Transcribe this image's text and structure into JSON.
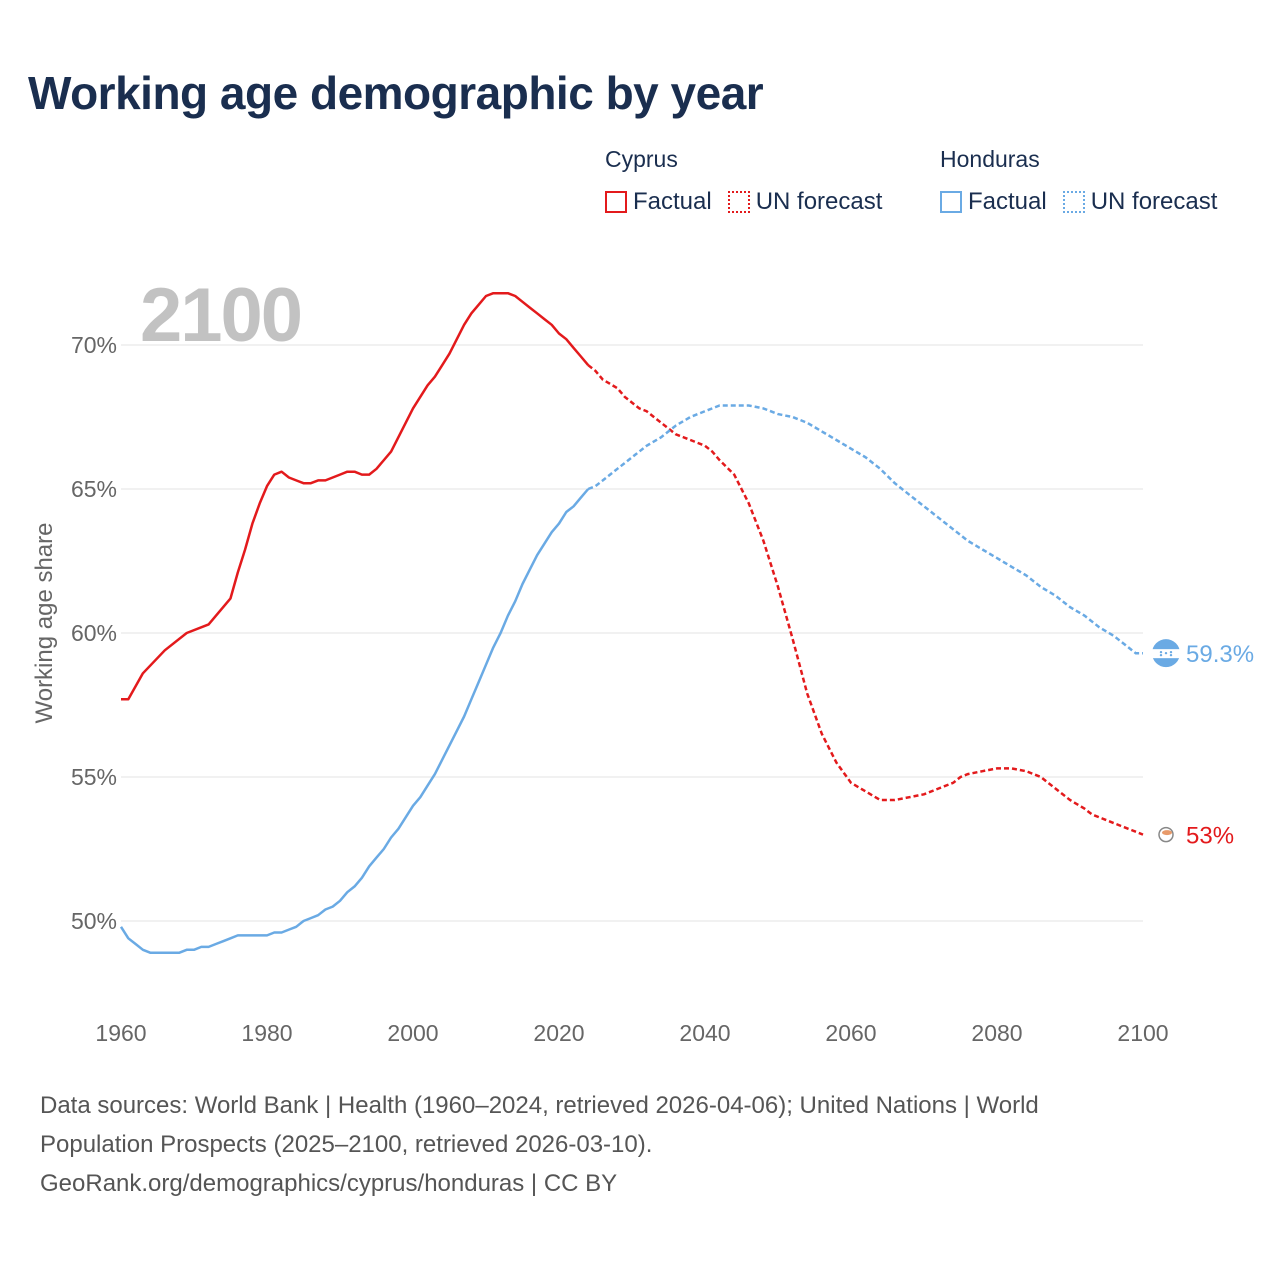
{
  "title": "Working age demographic by year",
  "year_display": "2100",
  "legend": {
    "groups": [
      {
        "name": "Cyprus",
        "color": "#e31a1c",
        "items": [
          "Factual",
          "UN forecast"
        ]
      },
      {
        "name": "Honduras",
        "color": "#6aaae4",
        "items": [
          "Factual",
          "UN forecast"
        ]
      }
    ]
  },
  "chart_data": {
    "type": "line",
    "title": "Working age demographic by year",
    "xlabel": "",
    "ylabel": "Working age share",
    "xlim": [
      1960,
      2100
    ],
    "ylim": [
      47.5,
      72.5
    ],
    "x_ticks": [
      1960,
      1980,
      2000,
      2020,
      2040,
      2060,
      2080,
      2100
    ],
    "y_ticks": [
      {
        "value": 50,
        "label": "50%"
      },
      {
        "value": 55,
        "label": "55%"
      },
      {
        "value": 60,
        "label": "60%"
      },
      {
        "value": 65,
        "label": "65%"
      },
      {
        "value": 70,
        "label": "70%"
      }
    ],
    "grid": true,
    "factual_end_year": 2024,
    "series": [
      {
        "name": "Cyprus",
        "color": "#e31a1c",
        "end_label": "53%",
        "points": [
          [
            1960,
            57.7
          ],
          [
            1961,
            57.7
          ],
          [
            1963,
            58.6
          ],
          [
            1966,
            59.4
          ],
          [
            1969,
            60.0
          ],
          [
            1972,
            60.3
          ],
          [
            1975,
            61.2
          ],
          [
            1976,
            62.1
          ],
          [
            1977,
            62.9
          ],
          [
            1978,
            63.8
          ],
          [
            1979,
            64.5
          ],
          [
            1980,
            65.1
          ],
          [
            1981,
            65.5
          ],
          [
            1982,
            65.6
          ],
          [
            1983,
            65.4
          ],
          [
            1984,
            65.3
          ],
          [
            1985,
            65.2
          ],
          [
            1986,
            65.2
          ],
          [
            1987,
            65.3
          ],
          [
            1988,
            65.3
          ],
          [
            1990,
            65.5
          ],
          [
            1991,
            65.6
          ],
          [
            1992,
            65.6
          ],
          [
            1993,
            65.5
          ],
          [
            1994,
            65.5
          ],
          [
            1995,
            65.7
          ],
          [
            1997,
            66.3
          ],
          [
            1999,
            67.3
          ],
          [
            2000,
            67.8
          ],
          [
            2002,
            68.6
          ],
          [
            2003,
            68.9
          ],
          [
            2004,
            69.3
          ],
          [
            2005,
            69.7
          ],
          [
            2006,
            70.2
          ],
          [
            2007,
            70.7
          ],
          [
            2008,
            71.1
          ],
          [
            2009,
            71.4
          ],
          [
            2010,
            71.7
          ],
          [
            2011,
            71.8
          ],
          [
            2013,
            71.8
          ],
          [
            2014,
            71.7
          ],
          [
            2015,
            71.5
          ],
          [
            2016,
            71.3
          ],
          [
            2017,
            71.1
          ],
          [
            2018,
            70.9
          ],
          [
            2019,
            70.7
          ],
          [
            2020,
            70.4
          ],
          [
            2021,
            70.2
          ],
          [
            2022,
            69.9
          ],
          [
            2023,
            69.6
          ],
          [
            2024,
            69.3
          ],
          [
            2025,
            69.1
          ],
          [
            2026,
            68.8
          ],
          [
            2028,
            68.5
          ],
          [
            2029,
            68.2
          ],
          [
            2030,
            68.0
          ],
          [
            2031,
            67.8
          ],
          [
            2032,
            67.7
          ],
          [
            2034,
            67.3
          ],
          [
            2036,
            66.9
          ],
          [
            2038,
            66.7
          ],
          [
            2040,
            66.5
          ],
          [
            2041,
            66.3
          ],
          [
            2042,
            66.0
          ],
          [
            2044,
            65.5
          ],
          [
            2046,
            64.5
          ],
          [
            2048,
            63.2
          ],
          [
            2050,
            61.6
          ],
          [
            2052,
            59.8
          ],
          [
            2054,
            57.9
          ],
          [
            2056,
            56.5
          ],
          [
            2058,
            55.5
          ],
          [
            2060,
            54.8
          ],
          [
            2062,
            54.5
          ],
          [
            2064,
            54.2
          ],
          [
            2066,
            54.2
          ],
          [
            2068,
            54.3
          ],
          [
            2070,
            54.4
          ],
          [
            2072,
            54.6
          ],
          [
            2074,
            54.8
          ],
          [
            2075,
            55.0
          ],
          [
            2076,
            55.1
          ],
          [
            2078,
            55.2
          ],
          [
            2080,
            55.3
          ],
          [
            2082,
            55.3
          ],
          [
            2084,
            55.2
          ],
          [
            2086,
            55.0
          ],
          [
            2088,
            54.6
          ],
          [
            2090,
            54.2
          ],
          [
            2092,
            53.9
          ],
          [
            2093,
            53.7
          ],
          [
            2095,
            53.5
          ],
          [
            2097,
            53.3
          ],
          [
            2099,
            53.1
          ],
          [
            2100,
            53.0
          ]
        ]
      },
      {
        "name": "Honduras",
        "color": "#6aaae4",
        "end_label": "59.3%",
        "points": [
          [
            1960,
            49.8
          ],
          [
            1961,
            49.4
          ],
          [
            1962,
            49.2
          ],
          [
            1963,
            49.0
          ],
          [
            1964,
            48.9
          ],
          [
            1968,
            48.9
          ],
          [
            1969,
            49.0
          ],
          [
            1970,
            49.0
          ],
          [
            1971,
            49.1
          ],
          [
            1972,
            49.1
          ],
          [
            1973,
            49.2
          ],
          [
            1974,
            49.3
          ],
          [
            1975,
            49.4
          ],
          [
            1976,
            49.5
          ],
          [
            1980,
            49.5
          ],
          [
            1981,
            49.6
          ],
          [
            1982,
            49.6
          ],
          [
            1983,
            49.7
          ],
          [
            1984,
            49.8
          ],
          [
            1985,
            50.0
          ],
          [
            1986,
            50.1
          ],
          [
            1987,
            50.2
          ],
          [
            1988,
            50.4
          ],
          [
            1989,
            50.5
          ],
          [
            1990,
            50.7
          ],
          [
            1991,
            51.0
          ],
          [
            1992,
            51.2
          ],
          [
            1993,
            51.5
          ],
          [
            1994,
            51.9
          ],
          [
            1995,
            52.2
          ],
          [
            1996,
            52.5
          ],
          [
            1997,
            52.9
          ],
          [
            1998,
            53.2
          ],
          [
            1999,
            53.6
          ],
          [
            2000,
            54.0
          ],
          [
            2001,
            54.3
          ],
          [
            2002,
            54.7
          ],
          [
            2003,
            55.1
          ],
          [
            2004,
            55.6
          ],
          [
            2005,
            56.1
          ],
          [
            2006,
            56.6
          ],
          [
            2007,
            57.1
          ],
          [
            2008,
            57.7
          ],
          [
            2009,
            58.3
          ],
          [
            2010,
            58.9
          ],
          [
            2011,
            59.5
          ],
          [
            2012,
            60.0
          ],
          [
            2013,
            60.6
          ],
          [
            2014,
            61.1
          ],
          [
            2015,
            61.7
          ],
          [
            2016,
            62.2
          ],
          [
            2017,
            62.7
          ],
          [
            2018,
            63.1
          ],
          [
            2019,
            63.5
          ],
          [
            2020,
            63.8
          ],
          [
            2021,
            64.2
          ],
          [
            2022,
            64.4
          ],
          [
            2023,
            64.7
          ],
          [
            2024,
            65.0
          ],
          [
            2025,
            65.1
          ],
          [
            2026,
            65.3
          ],
          [
            2028,
            65.7
          ],
          [
            2030,
            66.1
          ],
          [
            2032,
            66.5
          ],
          [
            2034,
            66.8
          ],
          [
            2036,
            67.2
          ],
          [
            2038,
            67.5
          ],
          [
            2040,
            67.7
          ],
          [
            2042,
            67.9
          ],
          [
            2044,
            67.9
          ],
          [
            2046,
            67.9
          ],
          [
            2048,
            67.8
          ],
          [
            2050,
            67.6
          ],
          [
            2052,
            67.5
          ],
          [
            2054,
            67.3
          ],
          [
            2056,
            67.0
          ],
          [
            2058,
            66.7
          ],
          [
            2060,
            66.4
          ],
          [
            2062,
            66.1
          ],
          [
            2064,
            65.7
          ],
          [
            2066,
            65.2
          ],
          [
            2068,
            64.8
          ],
          [
            2070,
            64.4
          ],
          [
            2072,
            64.0
          ],
          [
            2074,
            63.6
          ],
          [
            2076,
            63.2
          ],
          [
            2078,
            62.9
          ],
          [
            2080,
            62.6
          ],
          [
            2082,
            62.3
          ],
          [
            2084,
            62.0
          ],
          [
            2086,
            61.6
          ],
          [
            2088,
            61.3
          ],
          [
            2090,
            60.9
          ],
          [
            2092,
            60.6
          ],
          [
            2094,
            60.2
          ],
          [
            2096,
            59.9
          ],
          [
            2098,
            59.5
          ],
          [
            2099,
            59.3
          ],
          [
            2100,
            59.3
          ]
        ]
      }
    ]
  },
  "footer": {
    "line1": "Data sources: World Bank | Health (1960–2024, retrieved 2026-04-06); United Nations | World",
    "line2": "Population Prospects (2025–2100, retrieved 2026-03-10).",
    "line3": "GeoRank.org/demographics/cyprus/honduras | CC BY"
  }
}
